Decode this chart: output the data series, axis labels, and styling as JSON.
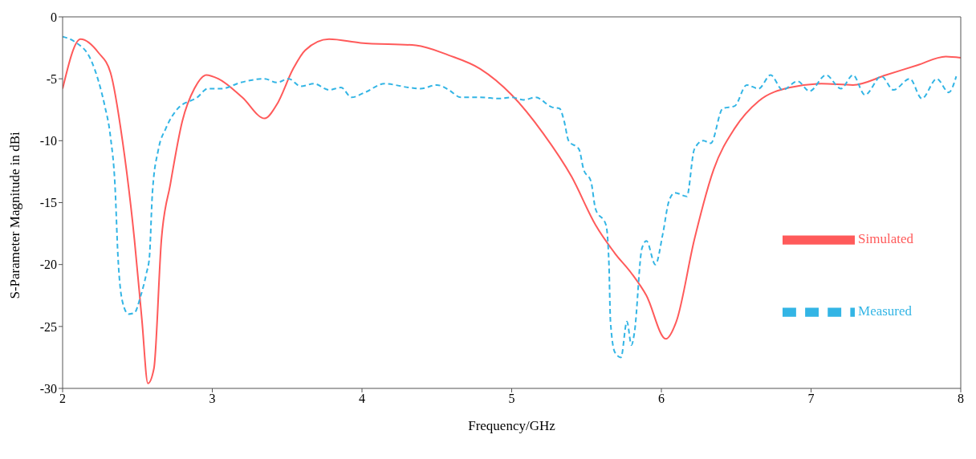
{
  "chart_data": {
    "type": "line",
    "xlabel": "Frequency/GHz",
    "ylabel": "S-Parameter Magnitude in dBi",
    "xlim": [
      2,
      8
    ],
    "xticks": [
      2,
      3,
      4,
      5,
      6,
      7,
      8
    ],
    "ylim": [
      -30,
      0
    ],
    "yticks": [
      -30,
      -25,
      -20,
      -15,
      -10,
      -5,
      0
    ],
    "grid": false,
    "legend": "bottom right",
    "series": [
      {
        "name": "Simulated",
        "color": "#ff5a5a",
        "line_style": "solid",
        "x": [
          2.0,
          2.12,
          2.24,
          2.32,
          2.4,
          2.48,
          2.53,
          2.57,
          2.61,
          2.66,
          2.72,
          2.8,
          2.88,
          2.96,
          3.04,
          3.2,
          3.35,
          3.43,
          3.54,
          3.62,
          3.78,
          3.99,
          4.36,
          4.58,
          4.79,
          5.0,
          5.21,
          5.4,
          5.56,
          5.69,
          5.8,
          5.9,
          6.03,
          6.1,
          6.22,
          6.35,
          6.49,
          6.65,
          6.86,
          7.07,
          7.28,
          7.5,
          7.71,
          7.9,
          8.0
        ],
        "values": [
          -5.8,
          -1.8,
          -2.9,
          -4.5,
          -10,
          -18,
          -24.5,
          -29.6,
          -28.4,
          -18,
          -13.5,
          -8.4,
          -5.8,
          -4.7,
          -5.0,
          -6.5,
          -8.2,
          -7.1,
          -4.2,
          -2.7,
          -1.8,
          -2.1,
          -2.3,
          -3.1,
          -4.2,
          -6.3,
          -9.4,
          -12.9,
          -16.8,
          -19.1,
          -20.7,
          -22.5,
          -26,
          -24.6,
          -18,
          -12.3,
          -9,
          -6.8,
          -5.7,
          -5.4,
          -5.5,
          -4.7,
          -3.9,
          -3.2,
          -3.3
        ]
      },
      {
        "name": "Measured",
        "color": "#33b5e5",
        "line_style": "dashed",
        "x": [
          2.0,
          2.08,
          2.19,
          2.24,
          2.28,
          2.32,
          2.35,
          2.37,
          2.4,
          2.44,
          2.48,
          2.52,
          2.56,
          2.58,
          2.6,
          2.64,
          2.69,
          2.77,
          2.9,
          2.97,
          3.06,
          3.19,
          3.35,
          3.43,
          3.51,
          3.59,
          3.68,
          3.78,
          3.86,
          3.93,
          4.02,
          4.15,
          4.31,
          4.39,
          4.5,
          4.58,
          4.66,
          4.79,
          4.92,
          5.0,
          5.08,
          5.16,
          5.27,
          5.32,
          5.35,
          5.38,
          5.45,
          5.48,
          5.53,
          5.56,
          5.63,
          5.65,
          5.66,
          5.69,
          5.73,
          5.77,
          5.8,
          5.82,
          5.87,
          5.9,
          5.96,
          6.01,
          6.05,
          6.09,
          6.17,
          6.22,
          6.28,
          6.33,
          6.41,
          6.49,
          6.57,
          6.65,
          6.73,
          6.81,
          6.91,
          6.99,
          7.1,
          7.2,
          7.28,
          7.36,
          7.47,
          7.55,
          7.66,
          7.74,
          7.84,
          7.92,
          7.97
        ],
        "values": [
          -1.6,
          -2,
          -3.5,
          -5.2,
          -7.1,
          -9.7,
          -13.6,
          -19.4,
          -23,
          -24,
          -23.9,
          -22.6,
          -20.7,
          -19.4,
          -14.2,
          -10.7,
          -9,
          -7.4,
          -6.5,
          -5.8,
          -5.8,
          -5.3,
          -5.0,
          -5.3,
          -5.0,
          -5.6,
          -5.4,
          -5.9,
          -5.7,
          -6.5,
          -6.1,
          -5.4,
          -5.7,
          -5.8,
          -5.5,
          -5.9,
          -6.5,
          -6.5,
          -6.6,
          -6.5,
          -6.7,
          -6.5,
          -7.3,
          -7.4,
          -8.4,
          -10,
          -10.7,
          -12.3,
          -13.3,
          -15.5,
          -16.8,
          -20,
          -24.6,
          -27.1,
          -27.5,
          -24.6,
          -26.5,
          -25.5,
          -18.7,
          -18.1,
          -20,
          -17.5,
          -14.9,
          -14.2,
          -14.5,
          -10.7,
          -10,
          -10.2,
          -7.4,
          -7.2,
          -5.5,
          -5.8,
          -4.7,
          -5.9,
          -5.2,
          -6.0,
          -4.7,
          -5.8,
          -4.7,
          -6.3,
          -4.8,
          -5.9,
          -5.0,
          -6.6,
          -5.0,
          -6.1,
          -4.8
        ]
      }
    ]
  }
}
